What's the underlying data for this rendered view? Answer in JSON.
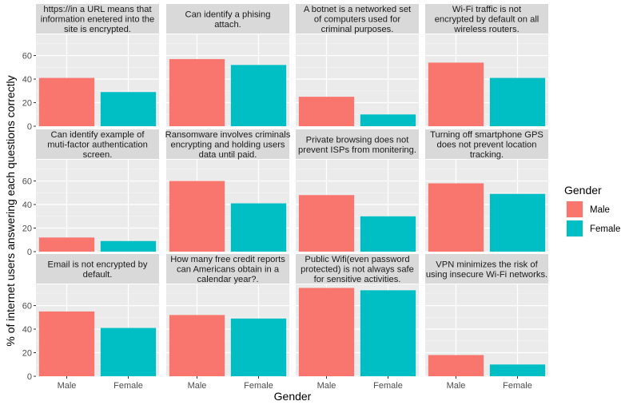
{
  "chart_data": {
    "type": "bar",
    "facet_layout": "3 rows x 4 columns",
    "xlabel": "Gender",
    "ylabel": "% of internet users answering each questions correctly",
    "categories": [
      "Male",
      "Female"
    ],
    "ylim": [
      0,
      78
    ],
    "yticks": [
      0,
      20,
      40,
      60
    ],
    "grid": true,
    "legend": {
      "title": "Gender",
      "placement": "right",
      "entries": [
        {
          "label": "Male",
          "color": "#F8766D"
        },
        {
          "label": "Female",
          "color": "#00BFC4"
        }
      ]
    },
    "colors": {
      "Male": "#F8766D",
      "Female": "#00BFC4",
      "panel": "#EBEBEB",
      "strip": "#D9D9D9"
    },
    "facets": [
      {
        "label_lines": [
          "https://in a URL means that",
          "information enetered into the",
          "site is encrypted."
        ],
        "values": [
          41,
          29
        ]
      },
      {
        "label_lines": [
          "Can identify a phising",
          "attach."
        ],
        "values": [
          57,
          52
        ]
      },
      {
        "label_lines": [
          "A botnet is a networked set",
          "of computers used for",
          "criminal purposes."
        ],
        "values": [
          25,
          10
        ]
      },
      {
        "label_lines": [
          "Wi-Fi traffic is not",
          "encrypted by default on all",
          "wireless routers."
        ],
        "values": [
          54,
          41
        ]
      },
      {
        "label_lines": [
          "Can identify example of",
          "muti-factor authentication",
          "screen."
        ],
        "values": [
          12,
          9
        ]
      },
      {
        "label_lines": [
          "Ransomware involves criminals",
          "encrypting and holding users",
          "data until paid."
        ],
        "values": [
          60,
          41
        ]
      },
      {
        "label_lines": [
          "Private browsing does not",
          "prevent ISPs from monitering."
        ],
        "values": [
          48,
          30
        ]
      },
      {
        "label_lines": [
          "Turning off smartphone GPS",
          "does not prevent location",
          "tracking."
        ],
        "values": [
          58,
          49
        ]
      },
      {
        "label_lines": [
          "Email is not encrypted by",
          "default."
        ],
        "values": [
          55,
          41
        ]
      },
      {
        "label_lines": [
          "How many free credit reports",
          "can Americans obtain in a",
          "calendar year?."
        ],
        "values": [
          52,
          49
        ]
      },
      {
        "label_lines": [
          "Public Wifi(even password",
          "protected) is not always safe",
          "for sensitive activities."
        ],
        "values": [
          75,
          73
        ]
      },
      {
        "label_lines": [
          "VPN minimizes the risk of",
          "using insecure Wi-Fi networks."
        ],
        "values": [
          18,
          10
        ]
      }
    ]
  }
}
